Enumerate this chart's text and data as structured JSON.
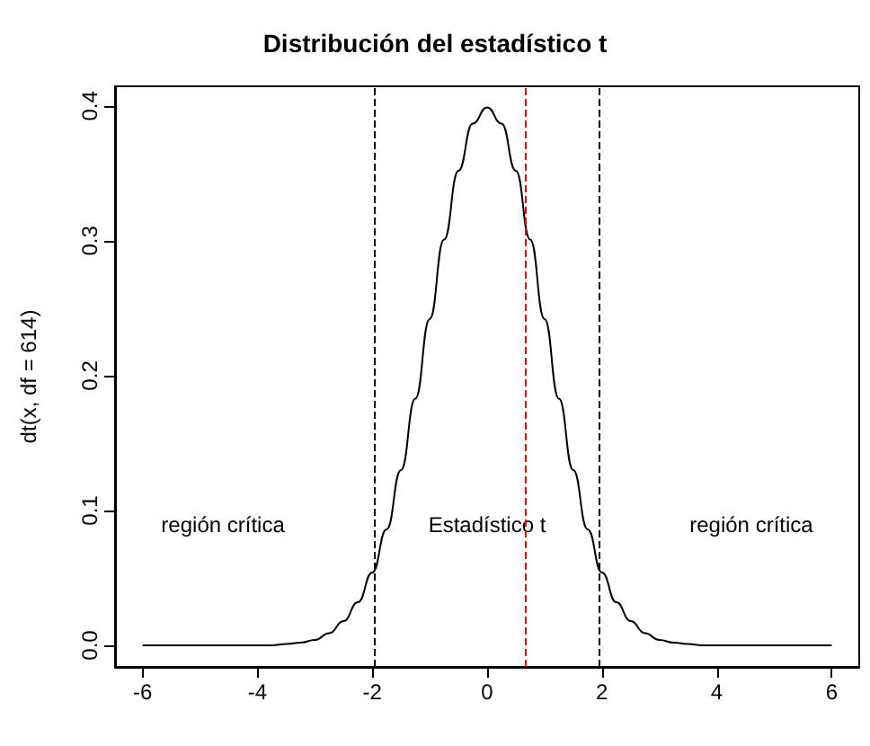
{
  "chart_data": {
    "type": "line",
    "title": "Distribución del estadístico t",
    "ylabel": "dt(x, df = 614)",
    "x": [
      -6,
      -5.75,
      -5.5,
      -5.25,
      -5,
      -4.75,
      -4.5,
      -4.25,
      -4,
      -3.75,
      -3.5,
      -3.25,
      -3,
      -2.75,
      -2.5,
      -2.25,
      -2,
      -1.75,
      -1.5,
      -1.25,
      -1,
      -0.75,
      -0.5,
      -0.25,
      0,
      0.25,
      0.5,
      0.75,
      1,
      1.25,
      1.5,
      1.75,
      2,
      2.25,
      2.5,
      2.75,
      3,
      3.25,
      3.5,
      3.75,
      4,
      4.25,
      4.5,
      4.75,
      5,
      5.25,
      5.5,
      5.75,
      6
    ],
    "series": [
      {
        "color": "#000000",
        "values": [
          0,
          0,
          0,
          0,
          0,
          0,
          0,
          0,
          0,
          0,
          0.001,
          0.002,
          0.004,
          0.009,
          0.018,
          0.032,
          0.054,
          0.086,
          0.13,
          0.183,
          0.242,
          0.301,
          0.352,
          0.387,
          0.399,
          0.387,
          0.352,
          0.301,
          0.242,
          0.183,
          0.13,
          0.086,
          0.054,
          0.032,
          0.018,
          0.009,
          0.004,
          0.002,
          0.001,
          0,
          0,
          0,
          0,
          0,
          0,
          0,
          0,
          0,
          0
        ]
      }
    ],
    "xlim": [
      -6.48,
      6.48
    ],
    "ylim": [
      -0.016,
      0.4146
    ],
    "xticks": [
      -6,
      -4,
      -2,
      0,
      2,
      4,
      6
    ],
    "yticks": [
      {
        "value": 0,
        "label": "0.0"
      },
      0.1,
      0.2,
      0.3,
      0.4
    ],
    "ref_lines": [
      {
        "axis": "x",
        "value": -1.96,
        "color": "#000000",
        "line_style": "dashed"
      },
      {
        "axis": "x",
        "value": 1.96,
        "color": "#000000",
        "line_style": "dashed"
      },
      {
        "axis": "x",
        "value": 0.65,
        "color": "#ff0000",
        "line_style": "dashed"
      }
    ],
    "annotations": [
      "región crítica",
      "Estadístico t",
      "región crítica"
    ],
    "grid": false,
    "marker": "none",
    "line_style": "solid"
  }
}
